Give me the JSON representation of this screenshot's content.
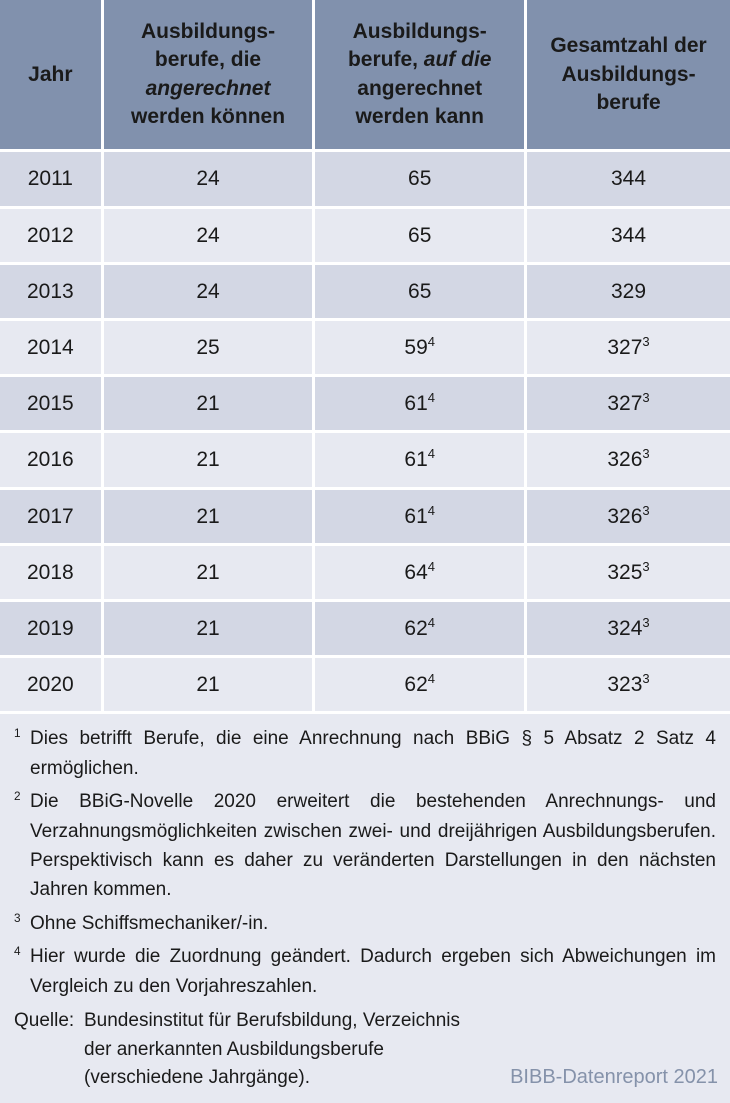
{
  "table": {
    "header_bg": "#8191ad",
    "row_odd_bg": "#d3d7e4",
    "row_even_bg": "#e7e9f1",
    "text_color": "#1a1a1a",
    "border_color": "#ffffff",
    "columns": [
      {
        "id": "jahr",
        "label_plain": "Jahr",
        "width_pct": 14
      },
      {
        "id": "angerechnet",
        "pre": "Ausbildungs-\nberufe, die ",
        "em": "angerechnet",
        "post": " werden können",
        "width_pct": 29
      },
      {
        "id": "auf_die",
        "pre": "Ausbildungs-\nberufe, ",
        "em": "auf die",
        "post": " angerechnet werden kann",
        "width_pct": 29
      },
      {
        "id": "gesamt",
        "label_plain": "Gesamtzahl der Ausbildungs-\nberufe",
        "width_pct": 28
      }
    ],
    "rows": [
      {
        "jahr": "2011",
        "c2": "24",
        "c3": "65",
        "c3_sup": "",
        "c4": "344",
        "c4_sup": ""
      },
      {
        "jahr": "2012",
        "c2": "24",
        "c3": "65",
        "c3_sup": "",
        "c4": "344",
        "c4_sup": ""
      },
      {
        "jahr": "2013",
        "c2": "24",
        "c3": "65",
        "c3_sup": "",
        "c4": "329",
        "c4_sup": ""
      },
      {
        "jahr": "2014",
        "c2": "25",
        "c3": "59",
        "c3_sup": "4",
        "c4": "327",
        "c4_sup": "3"
      },
      {
        "jahr": "2015",
        "c2": "21",
        "c3": "61",
        "c3_sup": "4",
        "c4": "327",
        "c4_sup": "3"
      },
      {
        "jahr": "2016",
        "c2": "21",
        "c3": "61",
        "c3_sup": "4",
        "c4": "326",
        "c4_sup": "3"
      },
      {
        "jahr": "2017",
        "c2": "21",
        "c3": "61",
        "c3_sup": "4",
        "c4": "326",
        "c4_sup": "3"
      },
      {
        "jahr": "2018",
        "c2": "21",
        "c3": "64",
        "c3_sup": "4",
        "c4": "325",
        "c4_sup": "3"
      },
      {
        "jahr": "2019",
        "c2": "21",
        "c3": "62",
        "c3_sup": "4",
        "c4": "324",
        "c4_sup": "3"
      },
      {
        "jahr": "2020",
        "c2": "21",
        "c3": "62",
        "c3_sup": "4",
        "c4": "323",
        "c4_sup": "3"
      }
    ]
  },
  "footnotes": [
    {
      "n": "1",
      "text": "Dies betrifft Berufe, die eine Anrechnung nach BBiG § 5 Absatz 2 Satz 4 ermöglichen."
    },
    {
      "n": "2",
      "text": "Die BBiG-Novelle 2020 erweitert die bestehenden Anrechnungs- und Verzahnungsmöglichkeiten zwischen zwei- und dreijährigen Ausbildungsberufen. Perspektivisch kann es daher zu veränderten Darstellungen in den nächsten Jahren kommen."
    },
    {
      "n": "3",
      "text": "Ohne Schiffsmechaniker/-in."
    },
    {
      "n": "4",
      "text": "Hier wurde die Zuordnung geändert. Dadurch ergeben sich Abweichungen im Vergleich zu den Vorjahreszahlen."
    }
  ],
  "source": {
    "label": "Quelle:",
    "text": "Bundesinstitut für Berufsbildung, Verzeichnis der anerkannten Ausbildungsberufe (verschiedene Jahrgänge)."
  },
  "attribution": "BIBB-Datenreport 2021",
  "attribution_color": "#8592aa"
}
